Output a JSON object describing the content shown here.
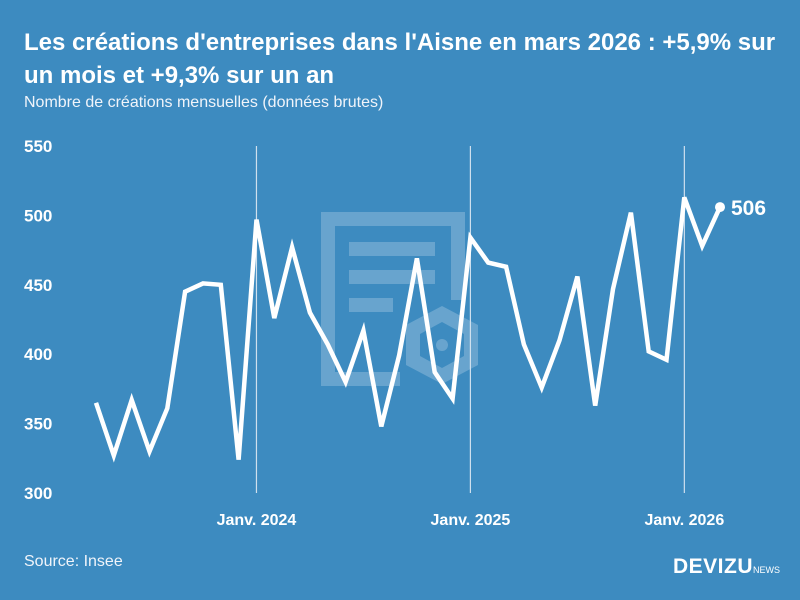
{
  "title": "Les créations d'entreprises dans l'Aisne en mars 2026 : +5,9% sur un mois et +9,3% sur un an",
  "subtitle": "Nombre de créations mensuelles (données brutes)",
  "source": "Source: Insee",
  "logo": {
    "main": "DEVIZU",
    "suffix": "NEWS"
  },
  "colors": {
    "background": "#3d8bc0",
    "line": "#ffffff"
  },
  "chart_data": {
    "type": "line",
    "title": "Les créations d'entreprises dans l'Aisne en mars 2026 : +5,9% sur un mois et +9,3% sur un an",
    "ylim": [
      300,
      550
    ],
    "yticks": [
      300,
      350,
      400,
      450,
      500,
      550
    ],
    "xtick_labels": [
      {
        "index": 9,
        "label": "Janv. 2024"
      },
      {
        "index": 21,
        "label": "Janv. 2025"
      },
      {
        "index": 33,
        "label": "Janv. 2026"
      }
    ],
    "x": [
      "2023-04",
      "2023-05",
      "2023-06",
      "2023-07",
      "2023-08",
      "2023-09",
      "2023-10",
      "2023-11",
      "2023-12",
      "2024-01",
      "2024-02",
      "2024-03",
      "2024-04",
      "2024-05",
      "2024-06",
      "2024-07",
      "2024-08",
      "2024-09",
      "2024-10",
      "2024-11",
      "2024-12",
      "2025-01",
      "2025-02",
      "2025-03",
      "2025-04",
      "2025-05",
      "2025-06",
      "2025-07",
      "2025-08",
      "2025-09",
      "2025-10",
      "2025-11",
      "2025-12",
      "2026-01",
      "2026-02",
      "2026-03"
    ],
    "values": [
      365,
      327,
      367,
      330,
      361,
      445,
      451,
      450,
      324,
      497,
      426,
      477,
      430,
      407,
      380,
      417,
      348,
      399,
      469,
      387,
      368,
      484,
      466,
      463,
      407,
      376,
      410,
      456,
      363,
      447,
      502,
      402,
      396,
      513,
      478,
      506
    ],
    "last_label": "506",
    "grid": "vertical lines at January",
    "legend": "none"
  }
}
